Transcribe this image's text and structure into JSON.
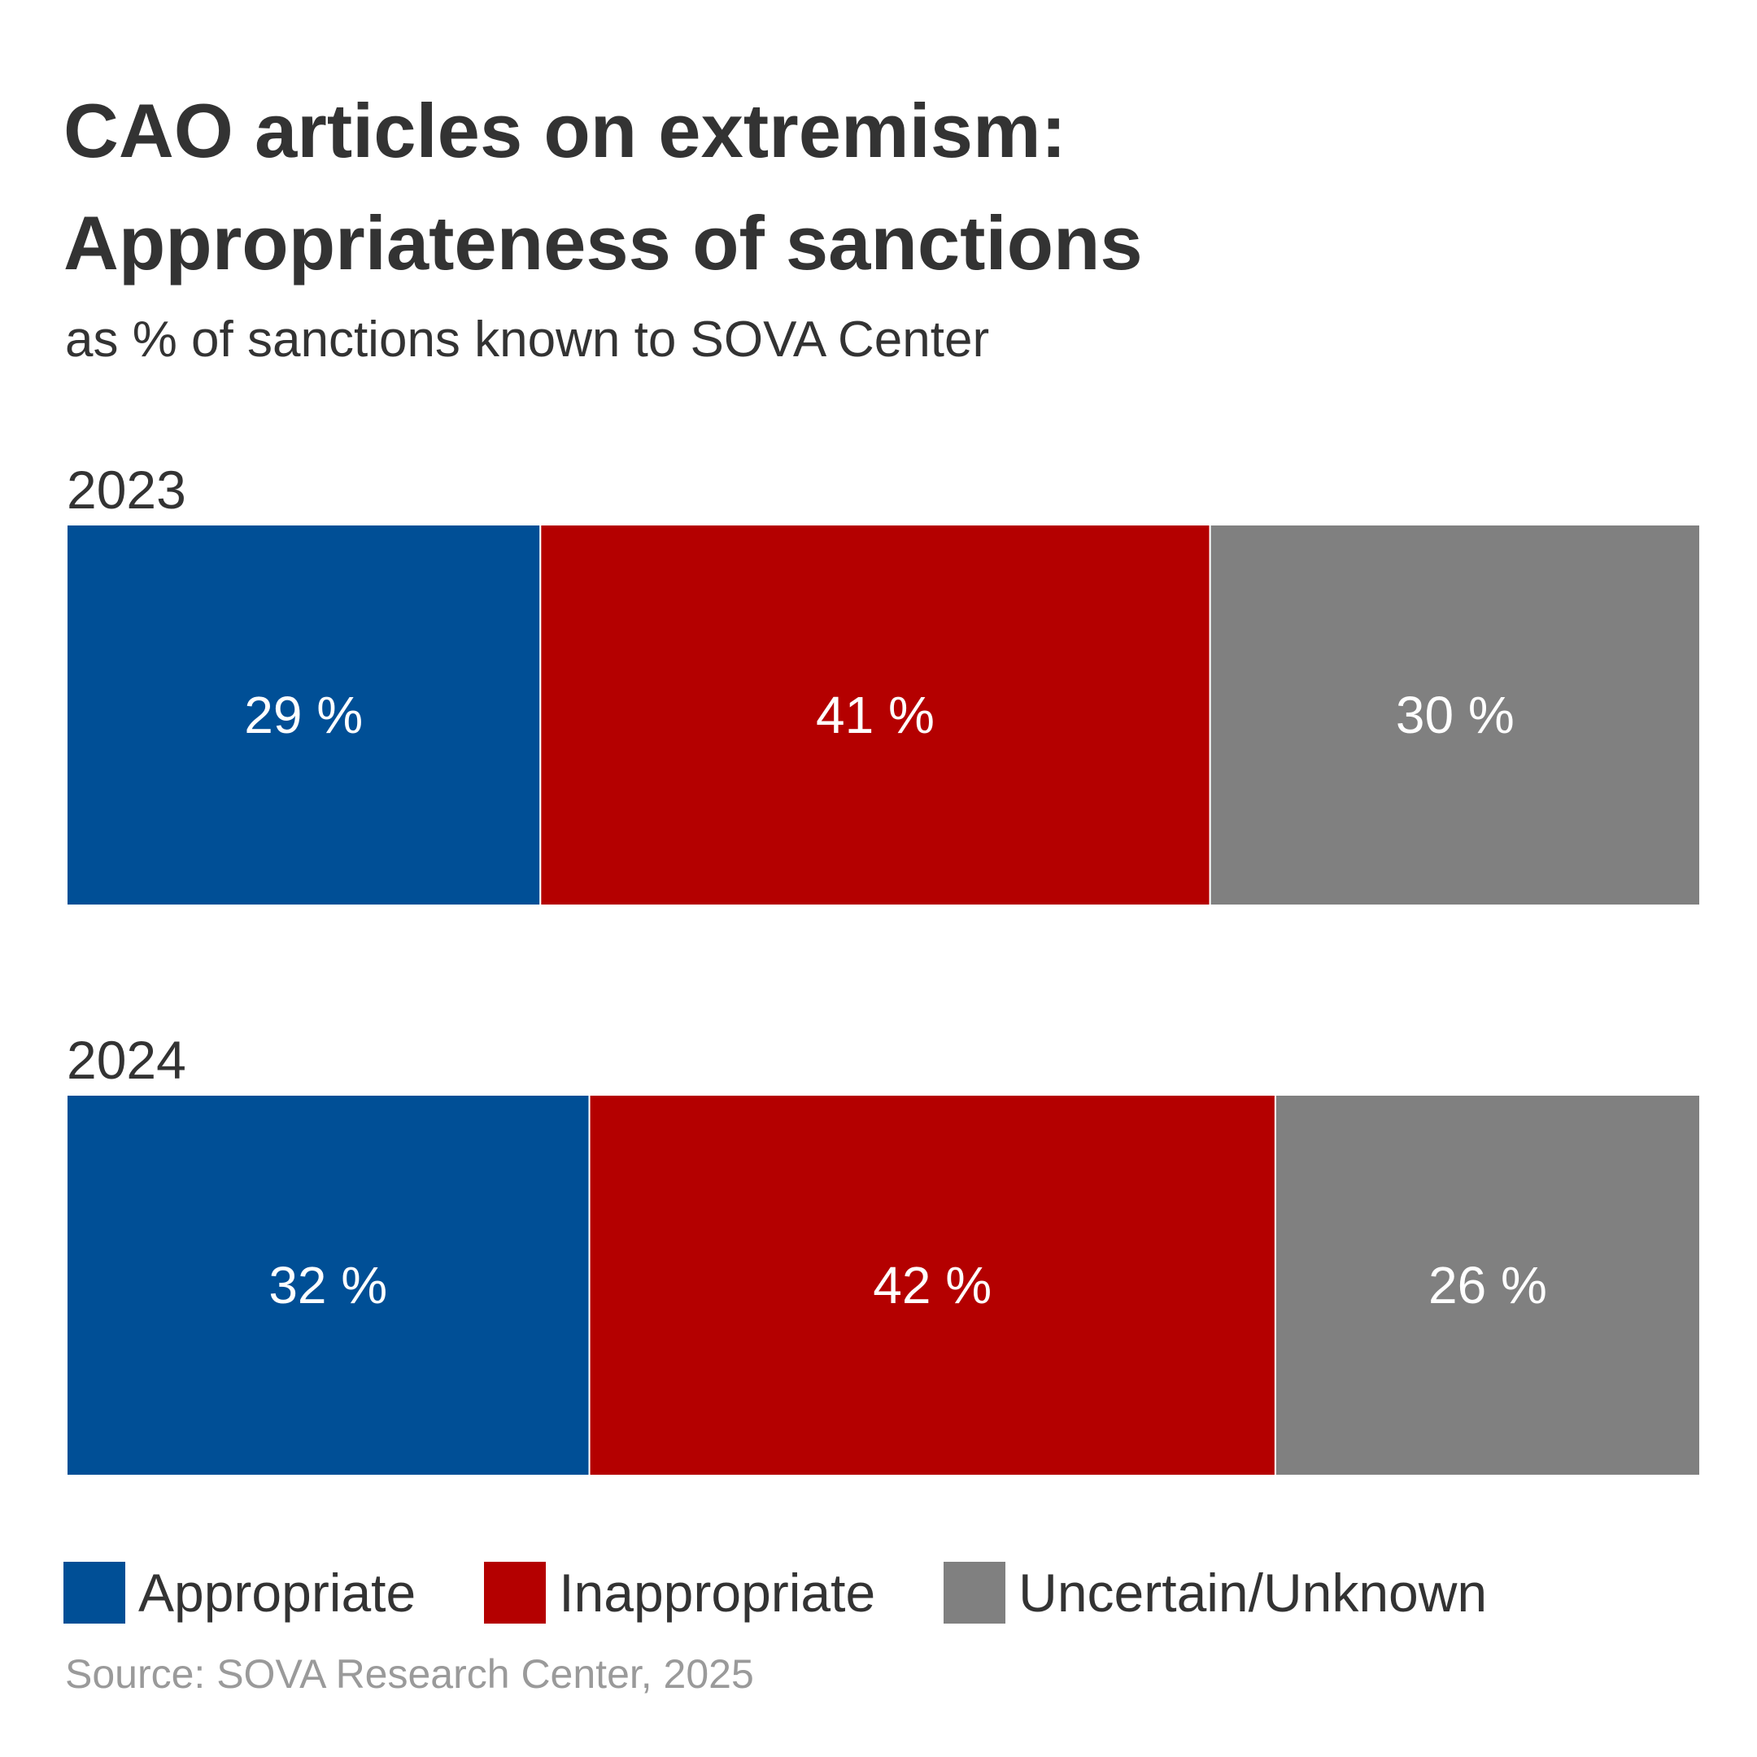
{
  "colors": {
    "appropriate": "#004f96",
    "inappropriate": "#b40000",
    "uncertain": "#808080",
    "label_text": "#ffffff"
  },
  "chart_data": {
    "type": "bar",
    "orientation": "horizontal",
    "stacked": "100%",
    "title": "CAO articles on extremism: Appropriateness of sanctions",
    "title_lines": [
      "CAO articles on extremism:",
      "Appropriateness of sanctions"
    ],
    "subtitle": "as % of sanctions known to SOVA Center",
    "categories": [
      "2023",
      "2024"
    ],
    "series": [
      {
        "name": "Appropriate",
        "color": "#004f96",
        "values": [
          29,
          32
        ],
        "labels": [
          "29 %",
          "32 %"
        ]
      },
      {
        "name": "Inappropriate",
        "color": "#b40000",
        "values": [
          41,
          42
        ],
        "labels": [
          "41 %",
          "42 %"
        ]
      },
      {
        "name": "Uncertain/Unknown",
        "color": "#808080",
        "values": [
          30,
          26
        ],
        "labels": [
          "30 %",
          "26 %"
        ]
      }
    ],
    "xlim": [
      0,
      100
    ],
    "grid": false,
    "legend": "bottom",
    "source": "Source: SOVA Research Center, 2025"
  }
}
